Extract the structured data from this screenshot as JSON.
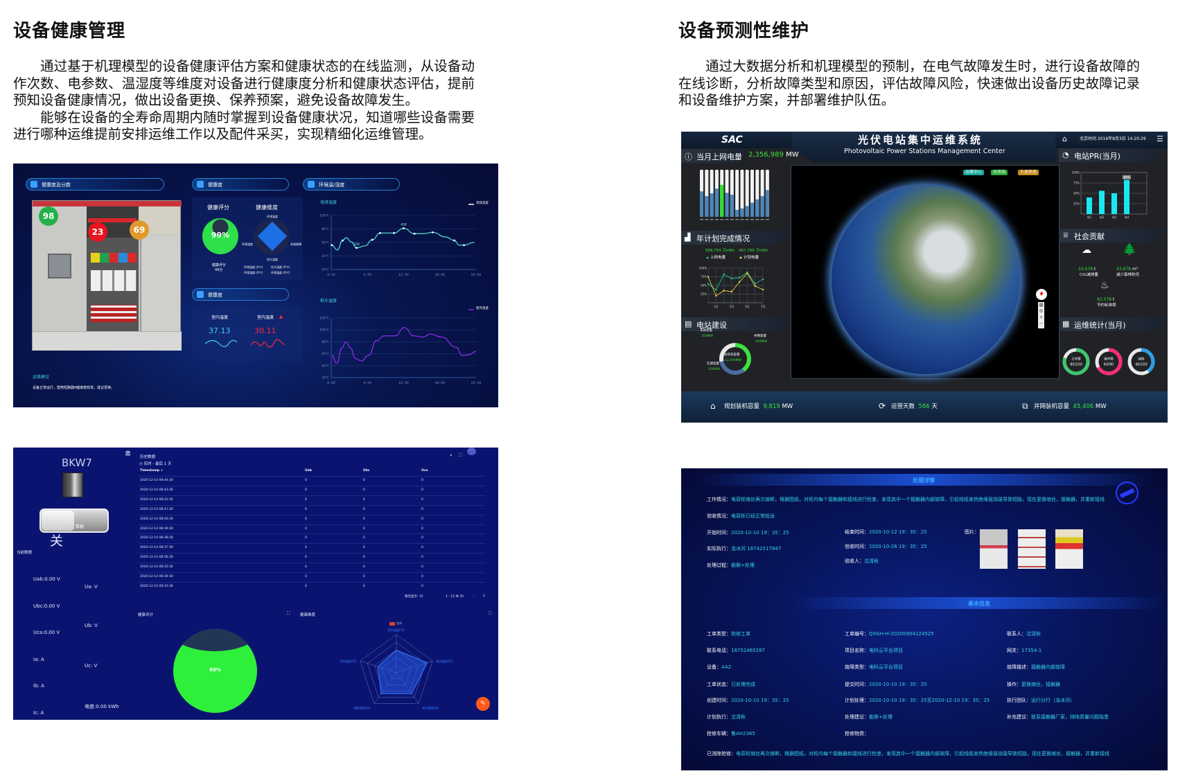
{
  "left": {
    "title": "设备健康管理",
    "paragraphs": [
      "通过基于机理模型的设备健康评估方案和健康状态的在线监测，从设备动作次数、电参数、温湿度等维度对设备进行健康度分析和健康状态评估，提前预知设备健康情况，做出设备更换、保养预案，避免设备故障发生。",
      "能够在设备的全寿命周期内随时掌握到设备健康状况，知道哪些设备需要进行哪种运维提前安排运维工作以及配件采买，实现精细化运维管理。"
    ]
  },
  "right": {
    "title": "设备预测性维护",
    "paragraphs": [
      "通过大数据分析和机理模型的预制，在电气故障发生时，进行设备故障的在线诊断，分析故障类型和原因，评估故障风险，快速做出设备历史故障记录和设备维护方案，并部署维护队伍。"
    ]
  },
  "health_dashboard": {
    "section_photo": "健康度及分数",
    "section_health": "健康度",
    "section_env": "环境温/湿度",
    "section_temp": "健康度",
    "badges": [
      {
        "value": "98",
        "color": "#22b04a"
      },
      {
        "value": "23",
        "color": "#e8141e"
      },
      {
        "value": "69",
        "color": "#e09a2c"
      }
    ],
    "score_title": "健康评分",
    "score_value": "99%",
    "score_fraction": 0.99,
    "score_caption": "健康评分",
    "score_caption2": "99分",
    "dim_title": "健康维度",
    "dim_labels": [
      "环境温度",
      "系统故障",
      "柱头温度",
      "环境湿度"
    ],
    "dim_readings": [
      "环境温度 (0℃)",
      "柱头温度 (0℃)",
      "环境湿度 (0℃)",
      "环境温度 (0℃)"
    ],
    "indoor_temp_label": "室内温度",
    "indoor_temp_value": "37.13",
    "indoor_hum_label": "室内温度",
    "indoor_hum_value": "30.11",
    "advice_title": "运维建议",
    "advice_text": "设备正常运行，塑壳短路器4健康度较低，建议更换。",
    "colors": {
      "cyan": "#3fd0e6",
      "red": "#ff2a3a",
      "purple": "#8a2be2"
    }
  },
  "chart_data": [
    {
      "type": "line",
      "title": "母排温度",
      "legend": "母排温度",
      "ylim": [
        20,
        100
      ],
      "yticks": [
        "20℃",
        "40℃",
        "60℃",
        "80℃",
        "100℃"
      ],
      "xticks": [
        "0: 00",
        "6: 00",
        "12: 00",
        "18: 00",
        "24: 00"
      ],
      "xlim": [
        0,
        24
      ],
      "annotations": [
        {
          "x": 4.2,
          "label": "220"
        },
        {
          "x": 12,
          "label": "450"
        }
      ],
      "x": [
        0.1,
        1,
        1.9,
        2.5,
        3.3,
        4.2,
        5.6,
        6.8,
        8.1,
        10.4,
        12,
        13.8,
        15.2,
        16.8,
        19,
        20.4,
        21.2,
        22,
        23.7
      ],
      "y": [
        56,
        49,
        63,
        67,
        61,
        52,
        55,
        64,
        74,
        74,
        81,
        73,
        73,
        75,
        68,
        63,
        56,
        56,
        60
      ],
      "markers": [
        0.1,
        1.9,
        4.2,
        6.8,
        8.1,
        10.4,
        12,
        13.8,
        16.8,
        20.4,
        22
      ]
    },
    {
      "type": "line",
      "title": "桩头温度",
      "legend": "柜内温度",
      "ylim": [
        20,
        120
      ],
      "yticks": [
        "20℃",
        "40℃",
        "60℃",
        "80℃",
        "100℃",
        "120℃"
      ],
      "xticks": [
        "0: 00",
        "6: 00",
        "12: 00",
        "18: 00",
        "24: 00"
      ],
      "xlim": [
        0,
        24
      ],
      "x": [
        0.1,
        0.9,
        1.8,
        2.4,
        3.2,
        4,
        5,
        6.2,
        7.5,
        8.8,
        10.6,
        12.1,
        13.7,
        15.2,
        16.4,
        18.3,
        20.7,
        21.7,
        22.7,
        24
      ],
      "y": [
        57,
        44,
        70,
        80,
        70,
        52,
        48,
        57,
        82,
        90,
        90,
        104,
        90,
        88,
        93,
        88,
        71,
        57,
        58,
        64
      ]
    }
  ],
  "pv_center": {
    "logo": "SAC",
    "title": "光伏电站集中运维系统",
    "subtitle": "Photovoltaic Power Stations Management Center",
    "datetime": "北京时间 2016年8月3日 14:20:29",
    "monthly_energy_label": "当月上网电量",
    "monthly_energy_value": "2,356,989",
    "monthly_energy_unit": "MW",
    "energy_bars": [
      0.54,
      0.44,
      0.5,
      0.6,
      0.68,
      0.51,
      0.47,
      0.15,
      0.18,
      0.23,
      0.3,
      0.37,
      0.44,
      0.57
    ],
    "energy_highlight_index": 4,
    "year_plan_label": "年计划完成情况",
    "year_plan_values": [
      "568,793 万kWh",
      "467,799 万kWh"
    ],
    "year_plan_legend": [
      "上网电量",
      "计划电量"
    ],
    "year_plan_yticks": [
      "25%",
      "50%",
      "75%",
      "100%"
    ],
    "year_plan_xticks": [
      "1月",
      "3月",
      "5月",
      "7月"
    ],
    "year_plan_series": [
      [
        55,
        37,
        82,
        70,
        72,
        88,
        55,
        68
      ],
      [
        75,
        20,
        35,
        32,
        60,
        85,
        48,
        38
      ]
    ],
    "year_plan_colors": [
      "#21c08a",
      "#e8d23a"
    ],
    "build_label": "电站建设",
    "build_center_label": "总装机容量",
    "build_center_value": "12,400MW",
    "build_items": [
      {
        "label": "未建容量",
        "value": "350MW"
      },
      {
        "label": "并网容量",
        "value": "540MW"
      },
      {
        "label": "在建容量",
        "value": "350MW"
      }
    ],
    "map_tags": [
      {
        "label": "运维中心",
        "color": "#14a89a"
      },
      {
        "label": "光伏站",
        "color": "#2ea83a"
      },
      {
        "label": "人员状态",
        "color": "#c58a1e"
      }
    ],
    "pr_label": "电站PR(当月)",
    "pr_yticks": [
      "25%",
      "50%",
      "75%",
      "100%"
    ],
    "pr_categories": [
      "站1",
      "站2",
      "站3",
      "站4"
    ],
    "pr_values": [
      40,
      56,
      50,
      82
    ],
    "pr_top_label": "82%",
    "social_label": "社会贡献",
    "social_items": [
      {
        "value": "33,678",
        "unit": "t",
        "label": "CO₂减排量"
      },
      {
        "value": "43,678",
        "unit": "m³",
        "label": "减少森林砍伐"
      },
      {
        "value": "93,578",
        "unit": "t",
        "label": "节约标准煤"
      }
    ],
    "ops_label": "运维统计(当月)",
    "ops_rings": [
      {
        "label": "工作票",
        "value": "80/100",
        "fraction": 0.8,
        "color": "#3cc86a"
      },
      {
        "label": "操作票",
        "value": "60/90",
        "fraction": 0.67,
        "color": "#ff2a7a"
      },
      {
        "label": "缺陷",
        "value": "40/100",
        "fraction": 0.4,
        "color": "#2aa0e8"
      }
    ],
    "footer": [
      {
        "label": "规划装机容量",
        "value": "9,819",
        "unit": "MW"
      },
      {
        "label": "运营天数",
        "value": "566",
        "unit": "天"
      },
      {
        "label": "并网装机容量",
        "value": "45,406",
        "unit": "MW"
      }
    ]
  },
  "device_monitor": {
    "device_name": "BKW7",
    "toggle_text": "数据",
    "switch_state": "关",
    "current_label": "当前数据",
    "readings_left": [
      "Uab:0.00 V",
      "Ubc:0.00 V",
      "Uca:0.00 V",
      "Ia: A",
      "Ib: A",
      "Ic: A"
    ],
    "readings_right": [
      "Ua: V",
      "Ub: V",
      "Uc: V",
      "电度:0.00 kWh"
    ],
    "history_title": "历史数据",
    "history_range": "实时 - 最后 1 天",
    "columns": [
      "Timestamp ↓",
      "Uab",
      "Ubc",
      "Uca"
    ],
    "rows": [
      [
        "2020-12-14 08:44:30",
        "0",
        "0",
        "0"
      ],
      [
        "2020-12-14 08:43:30",
        "0",
        "0",
        "0"
      ],
      [
        "2020-12-14 08:42:30",
        "0",
        "0",
        "0"
      ],
      [
        "2020-12-14 08:41:30",
        "0",
        "0",
        "0"
      ],
      [
        "2020-12-14 08:40:30",
        "0",
        "0",
        "0"
      ],
      [
        "2020-12-14 08:39:30",
        "0",
        "0",
        "0"
      ],
      [
        "2020-12-14 08:38:30",
        "0",
        "0",
        "0"
      ],
      [
        "2020-12-14 08:37:30",
        "0",
        "0",
        "0"
      ],
      [
        "2020-12-14 08:36:30",
        "0",
        "0",
        "0"
      ],
      [
        "2020-12-14 08:35:30",
        "0",
        "0",
        "0"
      ],
      [
        "2020-12-14 08:34:30",
        "0",
        "0",
        "0"
      ],
      [
        "2020-12-14 08:33:30",
        "0",
        "0",
        "0"
      ]
    ],
    "page_size_label": "每页显示: 15",
    "page_range": "1 - 15 共 35",
    "score_title": "健康评分",
    "score_value": "80%",
    "score_fraction": 0.8,
    "radar_title": "健康维度",
    "radar_legend": "健康",
    "radar_labels": [
      "柜内温度(35)",
      "柜内湿度(50)",
      "室内温度(40)",
      "周围湿度(40)",
      "柜体温度(30)"
    ],
    "radar_values": [
      35,
      50,
      40,
      40,
      30
    ],
    "radar_max": 50
  },
  "work_order": {
    "detail_title": "处理详情",
    "work_status_label": "工作情况：",
    "work_status": "电容柜熔丝再次熔断，根据图纸，对柜内每个接触器和接线进行检查，发现其中一个接触器内部故障，引起线缆发热绝缘层烧毁导致短路，现在更换熔丝，接触器，并重新接线",
    "detail_rows_left": [
      {
        "label": "验收情况：",
        "value": "电容柜已经正常投运"
      },
      {
        "label": "开始时间：",
        "value": "2020-10-10 19：35：25"
      },
      {
        "label": "实际执行：",
        "value": "洛冰河 18742517847"
      },
      {
        "label": "处理过程：",
        "value": "勘察+处理"
      }
    ],
    "detail_rows_right": [
      {
        "label": "结束时间：",
        "value": "2020-10-12 19：35：25"
      },
      {
        "label": "验收时间：",
        "value": "2020-10-26 19：35：25"
      },
      {
        "label": "验收人：",
        "value": "沈清秋"
      }
    ],
    "photos_label": "图片：",
    "basic_title": "基本信息",
    "basic_col1": [
      {
        "label": "工单类型：",
        "value": "抢修工单"
      },
      {
        "label": "联系电话：",
        "value": "18752465287"
      },
      {
        "label": "设备：",
        "value": "AA2"
      },
      {
        "label": "工单状态：",
        "value": "已处理完成"
      },
      {
        "label": "创建时间：",
        "value": "2020-10-10 19：35：25"
      },
      {
        "label": "计划执行：",
        "value": "沈清秋"
      },
      {
        "label": "抢修车辆：",
        "value": "鲁AH2365"
      }
    ],
    "basic_col2": [
      {
        "label": "工单编号：",
        "value": "QXGH-H-20200904124525"
      },
      {
        "label": "项目名称：",
        "value": "电科云平台项目"
      },
      {
        "label": "故障类型：",
        "value": "电科云平台项目"
      },
      {
        "label": "提交时间：",
        "value": "2020-10-10 19：35：25"
      },
      {
        "label": "计划处理：",
        "value": "2020-10-10 19：35：25至2020-12-10 19：35：25"
      },
      {
        "label": "处理建议：",
        "value": "勘察+处理"
      },
      {
        "label": "抢修物资：",
        "value": ""
      }
    ],
    "basic_col3": [
      {
        "label": "联系人：",
        "value": "沈清秋"
      },
      {
        "label": "网关：",
        "value": "17354-1"
      },
      {
        "label": "故障描述：",
        "value": "接触器内部故障"
      },
      {
        "label": "操作：",
        "value": "更换熔丝，接触器"
      },
      {
        "label": "执行团队：",
        "value": "运行分行（洛冰河）"
      },
      {
        "label": "补充建议：",
        "value": "联系接触器厂家，排除质量问题隐患"
      }
    ],
    "cleared_label": "已消除抢修：",
    "cleared_text": "电容柜熔丝再次熔断，根据图纸，对柜内每个接触器和接线进行检查，发现其中一个接触器内部故障，引起线缆发热绝缘层烧毁导致短路，现在更换熔丝，接触器，并重新接线"
  }
}
